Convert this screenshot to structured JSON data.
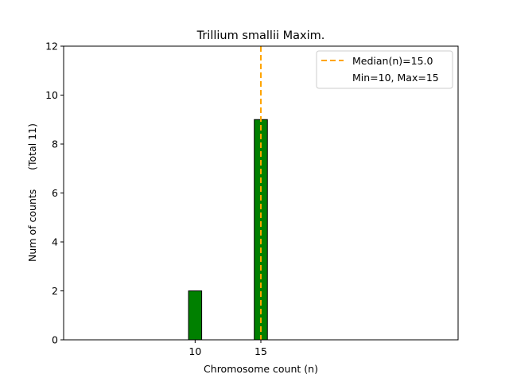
{
  "chart_data": {
    "type": "bar",
    "title": "Trillium smallii Maxim.",
    "xlabel": "Chromosome count (n)",
    "ylabel": "Num of counts      (Total 11)",
    "xlim": [
      0,
      30
    ],
    "ylim": [
      0,
      12
    ],
    "x_ticks": [
      10,
      15
    ],
    "y_ticks": [
      0,
      2,
      4,
      6,
      8,
      10,
      12
    ],
    "bins": [
      0,
      1,
      2,
      3,
      4,
      5,
      6,
      7,
      8,
      9,
      10,
      11,
      12,
      13,
      14,
      15,
      16,
      17,
      18
    ],
    "values": [
      0,
      0,
      0,
      0,
      0,
      0,
      0,
      0,
      0,
      0,
      2,
      0,
      0,
      0,
      0,
      9,
      0,
      0,
      0
    ],
    "bar_color": "#008000",
    "median": 15.0,
    "median_color": "#FFA500",
    "legend": {
      "placement": "top-right",
      "entries": [
        "Median(n)=15.0",
        "Min=10, Max=15"
      ]
    }
  }
}
